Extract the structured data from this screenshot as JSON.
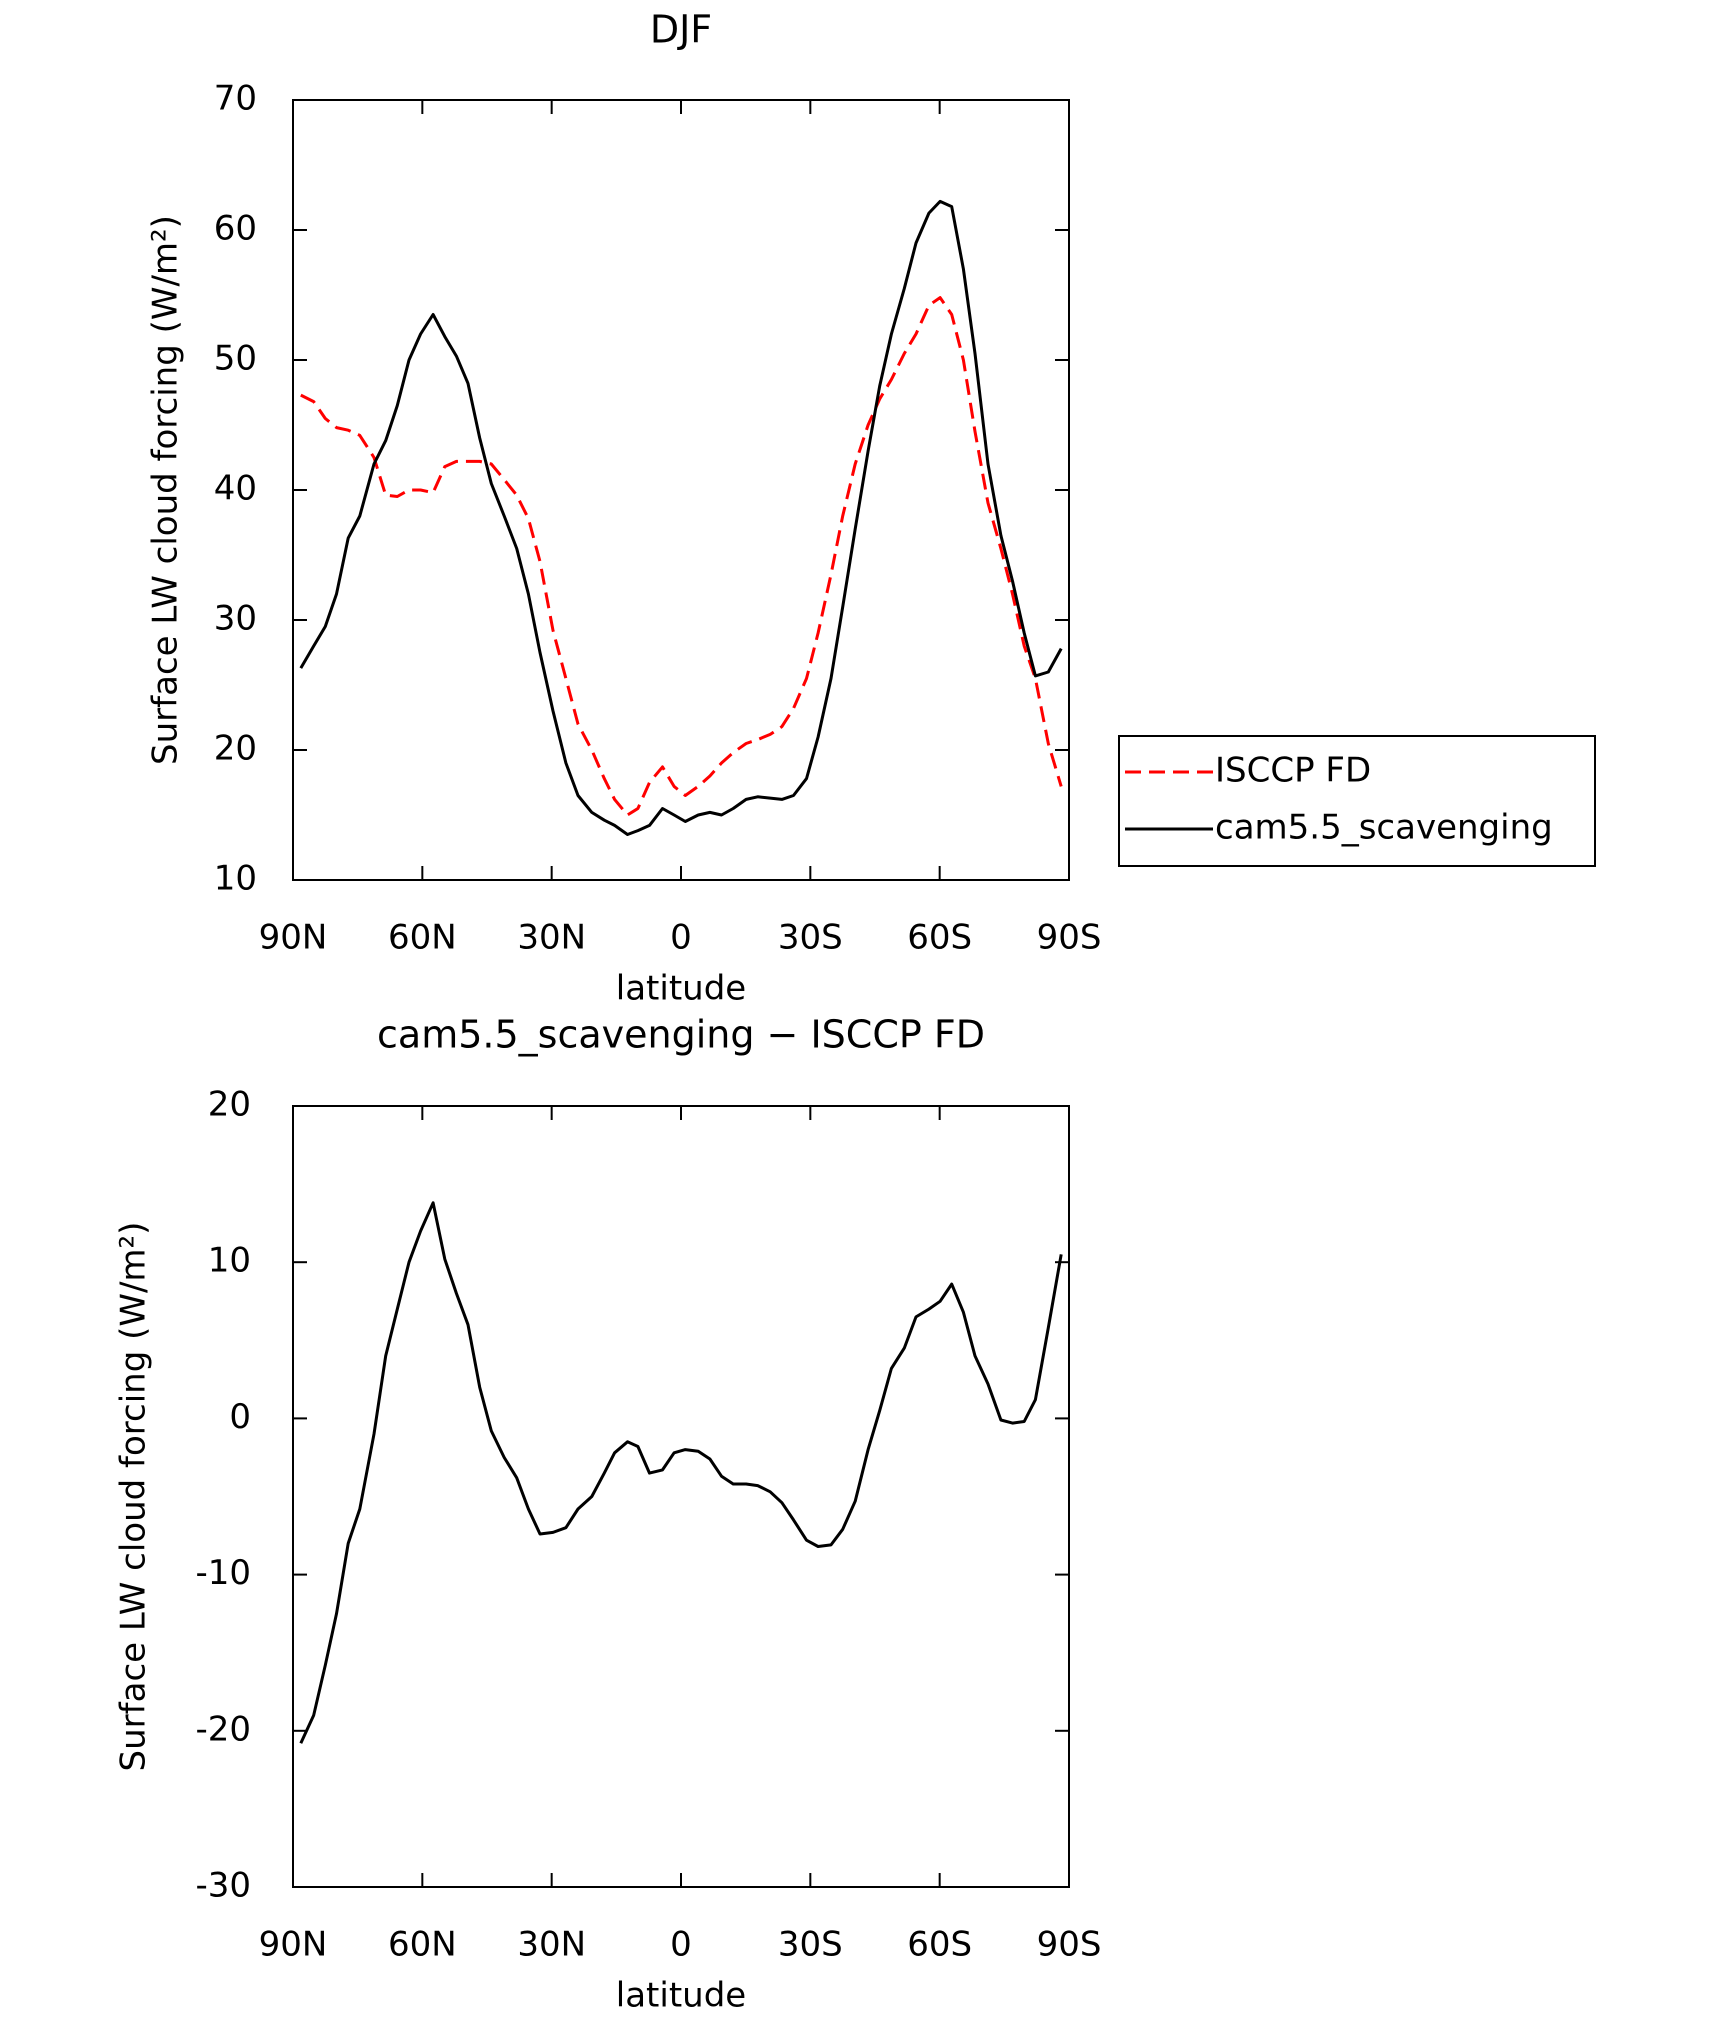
{
  "chart_data": [
    {
      "type": "line",
      "title": "DJF",
      "xlabel": "latitude",
      "ylabel": "Surface LW cloud forcing (W/m²)",
      "x": [
        88.2,
        85.2,
        82.5,
        79.9,
        77.2,
        74.5,
        71.2,
        68.5,
        65.8,
        63.1,
        60.4,
        57.5,
        54.8,
        52.1,
        49.4,
        46.7,
        44,
        41,
        38.1,
        35.4,
        32.7,
        29.7,
        26.7,
        23.9,
        20.7,
        17.8,
        15.4,
        12.4,
        10,
        7.3,
        4.3,
        1.6,
        -1,
        -4,
        -6.7,
        -9.4,
        -12.1,
        -15.1,
        -17.8,
        -20.7,
        -23.4,
        -26.1,
        -29.1,
        -31.8,
        -34.8,
        -37.5,
        -40.4,
        -43.4,
        -46.1,
        -48.8,
        -51.8,
        -54.5,
        -57.5,
        -60.1,
        -62.8,
        -65.5,
        -68.2,
        -71.2,
        -74.2,
        -76.9,
        -79.6,
        -82.2,
        -85.2,
        -88.2
      ],
      "series": [
        {
          "name": "ISCCP FD",
          "color": "#ff0000",
          "style": "dashed",
          "values": [
            47.3,
            46.8,
            45.5,
            44.8,
            44.6,
            44.2,
            42.5,
            39.6,
            39.5,
            40,
            40,
            39.8,
            41.8,
            42.2,
            42.2,
            42.2,
            42,
            40.8,
            39.6,
            37.8,
            34.5,
            29.2,
            25.5,
            22,
            20,
            17.8,
            16.2,
            15,
            15.5,
            17.5,
            18.7,
            17.2,
            16.5,
            17.2,
            18,
            19,
            19.8,
            20.5,
            20.8,
            21.2,
            21.8,
            23.2,
            25.5,
            29,
            33.5,
            38,
            42,
            45,
            47,
            48.5,
            50.5,
            52,
            54.2,
            54.8,
            53.5,
            50,
            44.5,
            39,
            35.5,
            32,
            28,
            25.5,
            20.5,
            17.2
          ]
        },
        {
          "name": "cam5.5_scavenging",
          "color": "#000000",
          "style": "solid",
          "values": [
            26.3,
            28,
            29.5,
            32,
            36.3,
            38,
            42,
            43.8,
            46.5,
            50,
            52,
            53.5,
            51.8,
            50.3,
            48.2,
            44,
            40.5,
            38,
            35.5,
            32,
            27.5,
            23,
            19,
            16.5,
            15.2,
            14.6,
            14.2,
            13.5,
            13.8,
            14.2,
            15.5,
            15,
            14.5,
            15,
            15.2,
            15,
            15.5,
            16.2,
            16.4,
            16.3,
            16.2,
            16.5,
            17.8,
            21,
            25.5,
            31,
            37,
            43,
            48,
            52,
            55.5,
            59,
            61.3,
            62.2,
            61.8,
            57,
            50.5,
            42,
            36.5,
            33,
            29,
            25.7,
            26,
            27.8
          ]
        }
      ],
      "xlim": [
        90,
        -90
      ],
      "xticks": [
        {
          "value": 90,
          "label": "90N"
        },
        {
          "value": 60,
          "label": "60N"
        },
        {
          "value": 30,
          "label": "30N"
        },
        0,
        {
          "value": -30,
          "label": "30S"
        },
        {
          "value": -60,
          "label": "60S"
        },
        {
          "value": -90,
          "label": "90S"
        }
      ],
      "ylim": [
        10,
        70
      ],
      "yticks": [
        10,
        20,
        30,
        40,
        50,
        60,
        70
      ],
      "legend": "right"
    },
    {
      "type": "line",
      "title": "cam5.5_scavenging − ISCCP FD",
      "xlabel": "latitude",
      "ylabel": "Surface LW cloud forcing (W/m²)",
      "x": [
        88.2,
        85.2,
        82.5,
        79.9,
        77.2,
        74.5,
        71.2,
        68.5,
        65.8,
        63.1,
        60.4,
        57.5,
        54.8,
        52.1,
        49.4,
        46.7,
        44,
        41,
        38.1,
        35.4,
        32.7,
        29.7,
        26.7,
        23.9,
        20.7,
        17.8,
        15.4,
        12.4,
        10,
        7.3,
        4.3,
        1.6,
        -1,
        -4,
        -6.7,
        -9.4,
        -12.1,
        -15.1,
        -17.8,
        -20.7,
        -23.4,
        -26.1,
        -29.1,
        -31.8,
        -34.8,
        -37.5,
        -40.4,
        -43.4,
        -46.1,
        -48.8,
        -51.8,
        -54.5,
        -57.5,
        -60.1,
        -62.8,
        -65.5,
        -68.2,
        -71.2,
        -74.2,
        -76.9,
        -79.6,
        -82.2,
        -85.2,
        -88.2
      ],
      "series": [
        {
          "color": "#000000",
          "style": "solid",
          "values": [
            -20.8,
            -19,
            -15.8,
            -12.5,
            -8,
            -5.8,
            -1,
            4,
            7,
            10,
            12,
            13.8,
            10.2,
            8,
            6,
            2,
            -0.8,
            -2.5,
            -3.8,
            -5.8,
            -7.4,
            -7.3,
            -7,
            -5.8,
            -5,
            -3.5,
            -2.2,
            -1.5,
            -1.8,
            -3.5,
            -3.3,
            -2.2,
            -2,
            -2.1,
            -2.6,
            -3.7,
            -4.2,
            -4.2,
            -4.3,
            -4.7,
            -5.4,
            -6.5,
            -7.8,
            -8.2,
            -8.1,
            -7.1,
            -5.3,
            -2,
            0.5,
            3.2,
            4.5,
            6.5,
            7,
            7.5,
            8.6,
            6.8,
            4,
            2.2,
            -0.1,
            -0.3,
            -0.2,
            1.2,
            5.8,
            10.5
          ]
        }
      ],
      "xlim": [
        90,
        -90
      ],
      "xticks": [
        {
          "value": 90,
          "label": "90N"
        },
        {
          "value": 60,
          "label": "60N"
        },
        {
          "value": 30,
          "label": "30N"
        },
        0,
        {
          "value": -30,
          "label": "30S"
        },
        {
          "value": -60,
          "label": "60S"
        },
        {
          "value": -90,
          "label": "90S"
        }
      ],
      "ylim": [
        -30,
        20
      ],
      "yticks": [
        -30,
        -20,
        -10,
        0,
        10,
        20
      ]
    }
  ]
}
